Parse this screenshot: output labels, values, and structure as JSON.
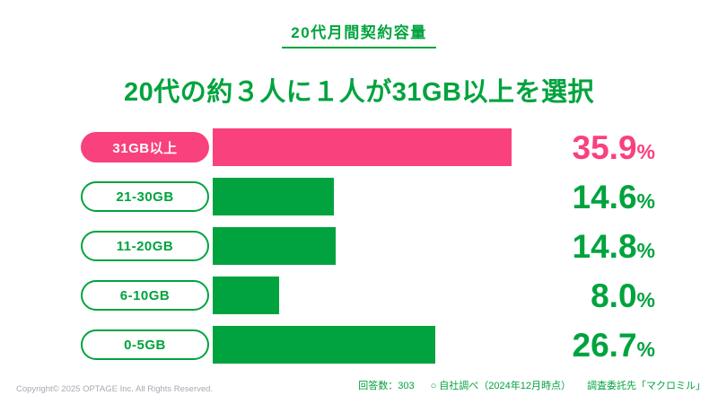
{
  "page": {
    "badge": "20代月間契約容量",
    "headline": "20代の約３人に１人が31GB以上を選択"
  },
  "chart_data": {
    "type": "bar",
    "orientation": "horizontal",
    "title": "20代月間契約容量",
    "subtitle": "20代の約３人に１人が31GB以上を選択",
    "categories": [
      "31GB以上",
      "21-30GB",
      "11-20GB",
      "6-10GB",
      "0-5GB"
    ],
    "values": [
      35.9,
      14.6,
      14.8,
      8.0,
      26.7
    ],
    "value_labels": [
      "35.9",
      "14.6",
      "14.8",
      "8.0",
      "26.7"
    ],
    "unit": "%",
    "xlim": [
      0,
      40
    ],
    "grid": false,
    "legend": false,
    "highlight_index": 0,
    "colors": {
      "highlight": "#F8417D",
      "default": "#00A33E"
    }
  },
  "footer": {
    "copyright": "Copyright© 2025 OPTAGE Inc. All Rights Reserved.",
    "respondents": "回答数：303",
    "survey_note": "○ 自社調べ（2024年12月時点）",
    "agency_note": "調査委託先「マクロミル」"
  }
}
